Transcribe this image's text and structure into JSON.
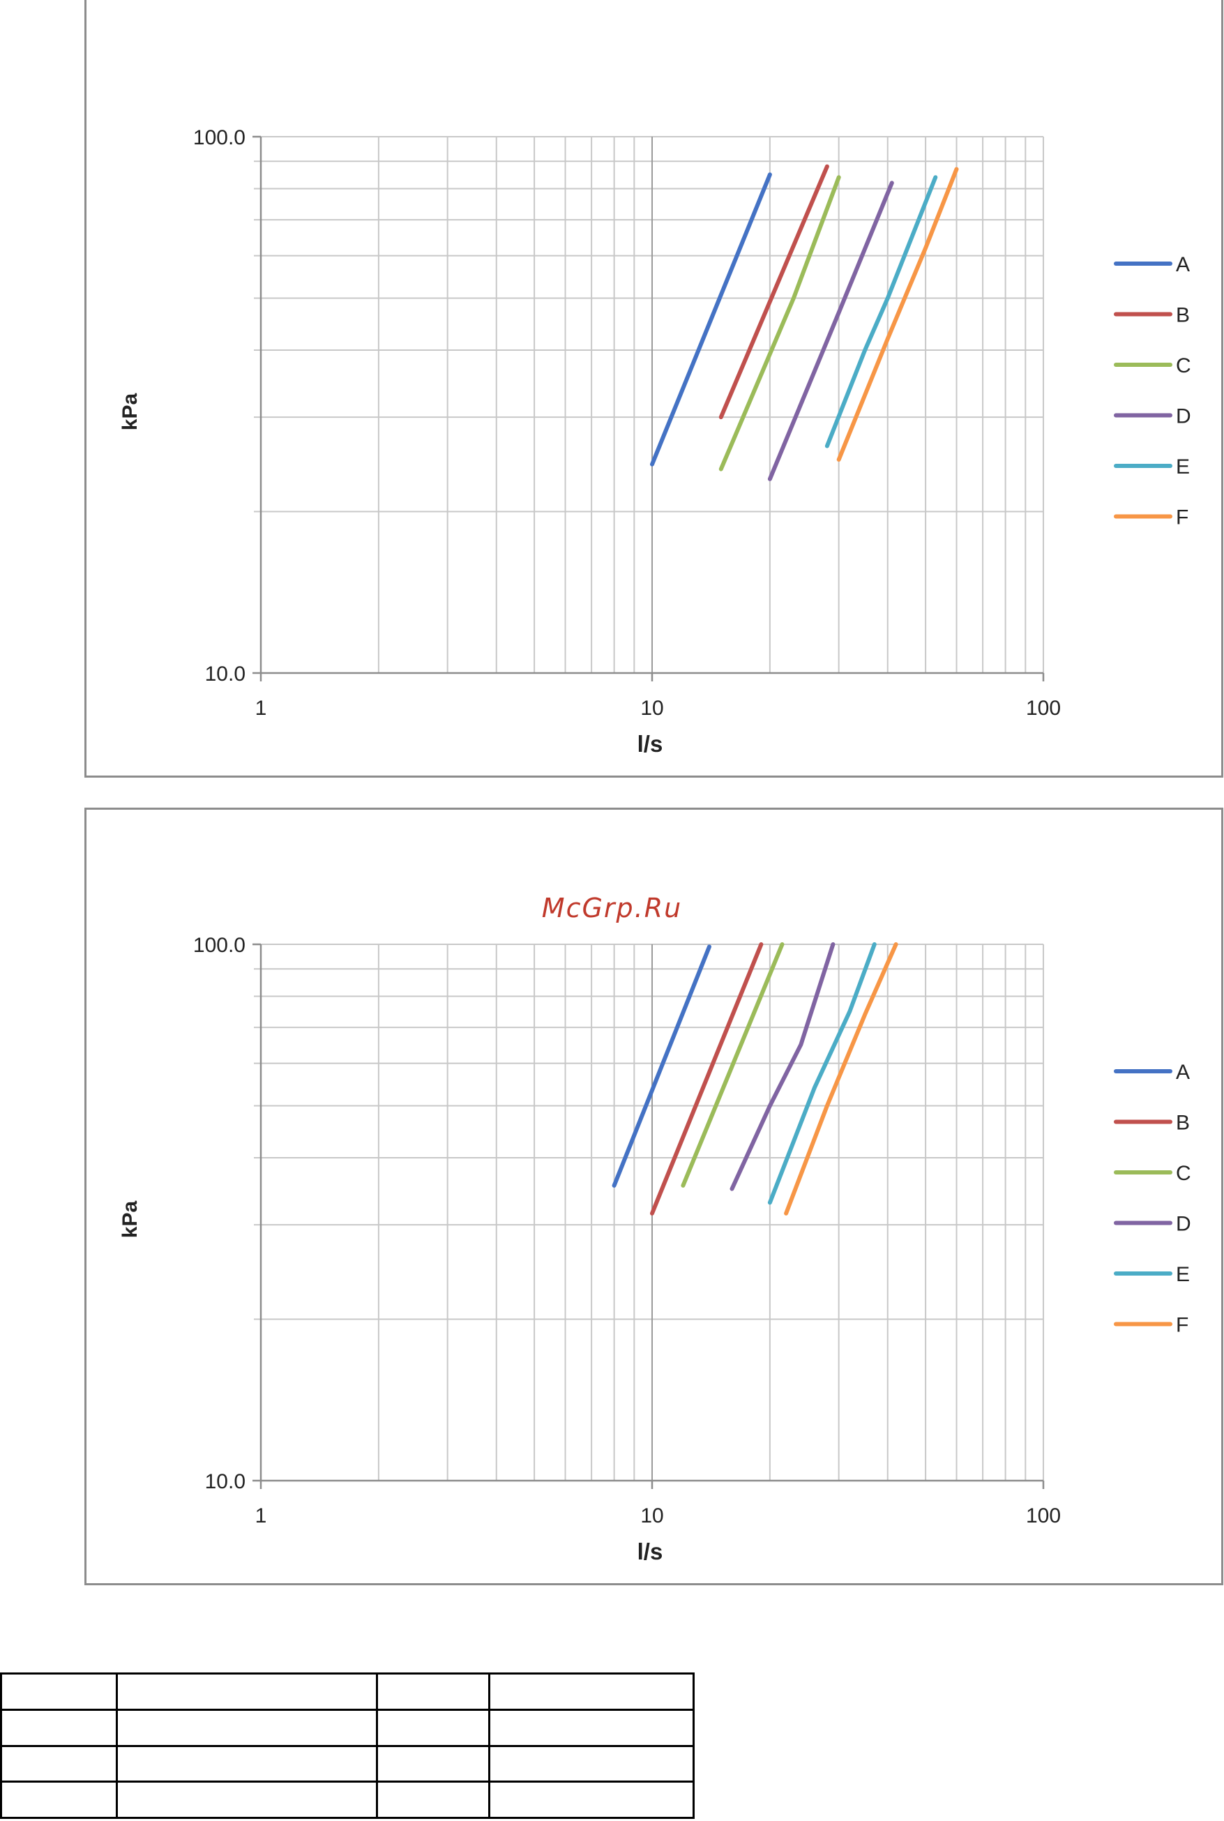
{
  "watermark": "McGrp.Ru",
  "chart_data": [
    {
      "type": "line",
      "xscale": "log",
      "yscale": "log",
      "xlim": [
        1,
        100
      ],
      "ylim": [
        10,
        100
      ],
      "xlabel": "l/s",
      "ylabel": "kPa",
      "xticks": [
        "1",
        "10",
        "100"
      ],
      "yticks": [
        "10.0",
        "100.0"
      ],
      "grid": true,
      "legend": "right",
      "series": [
        {
          "name": "A",
          "color": "#4472C4",
          "x": [
            10,
            20
          ],
          "y": [
            24.5,
            85
          ]
        },
        {
          "name": "B",
          "color": "#C0504D",
          "x": [
            15,
            28
          ],
          "y": [
            30,
            88
          ]
        },
        {
          "name": "C",
          "color": "#9BBB59",
          "x": [
            15,
            23,
            30
          ],
          "y": [
            24,
            50,
            84
          ]
        },
        {
          "name": "D",
          "color": "#8064A2",
          "x": [
            20,
            30,
            41
          ],
          "y": [
            23,
            47,
            82
          ]
        },
        {
          "name": "E",
          "color": "#4BACC6",
          "x": [
            28,
            35,
            40,
            53
          ],
          "y": [
            26.5,
            40,
            50,
            84
          ]
        },
        {
          "name": "F",
          "color": "#F79646",
          "x": [
            30,
            40,
            50,
            60
          ],
          "y": [
            25,
            42,
            62,
            87
          ]
        }
      ]
    },
    {
      "type": "line",
      "xscale": "log",
      "yscale": "log",
      "xlim": [
        1,
        100
      ],
      "ylim": [
        10,
        100
      ],
      "xlabel": "l/s",
      "ylabel": "kPa",
      "xticks": [
        "1",
        "10",
        "100"
      ],
      "yticks": [
        "10.0",
        "100.0"
      ],
      "grid": true,
      "legend": "right",
      "series": [
        {
          "name": "A",
          "color": "#4472C4",
          "x": [
            8,
            14
          ],
          "y": [
            35.5,
            99
          ]
        },
        {
          "name": "B",
          "color": "#C0504D",
          "x": [
            10,
            19
          ],
          "y": [
            31.5,
            100
          ]
        },
        {
          "name": "C",
          "color": "#9BBB59",
          "x": [
            12,
            21.5
          ],
          "y": [
            35.5,
            100
          ]
        },
        {
          "name": "D",
          "color": "#8064A2",
          "x": [
            16,
            20,
            24,
            29
          ],
          "y": [
            35,
            50,
            65,
            100
          ]
        },
        {
          "name": "E",
          "color": "#4BACC6",
          "x": [
            20,
            26,
            32,
            37
          ],
          "y": [
            33,
            54,
            75,
            100
          ]
        },
        {
          "name": "F",
          "color": "#F79646",
          "x": [
            22,
            28,
            35,
            42
          ],
          "y": [
            31.5,
            50,
            74,
            100
          ]
        }
      ]
    }
  ]
}
